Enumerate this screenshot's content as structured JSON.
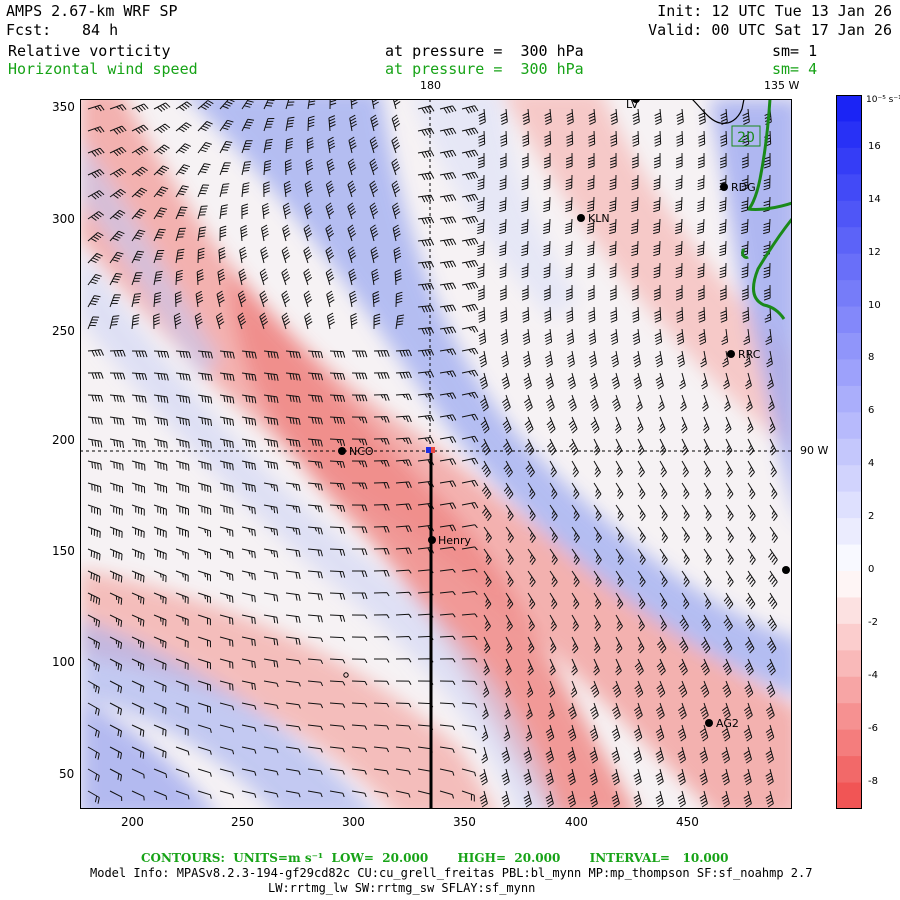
{
  "header": {
    "title": "AMPS 2.67-km WRF SP",
    "fcst_label": "Fcst:",
    "fcst_value": "84 h",
    "init": "Init: 12 UTC Tue 13 Jan 26",
    "valid": "Valid: 00 UTC Sat 17 Jan 26",
    "field1": {
      "name": "Relative vorticity",
      "level": "at pressure =  300 hPa",
      "sm": "sm= 1"
    },
    "field2": {
      "name": "Horizontal wind speed",
      "level": "at pressure =  300 hPa",
      "sm": "sm= 4"
    }
  },
  "map": {
    "x_ticks": [
      "200",
      "250",
      "300",
      "350",
      "400",
      "450"
    ],
    "y_ticks": [
      "350",
      "300",
      "250",
      "200",
      "150",
      "100",
      "50"
    ],
    "meridian_labels": {
      "lon180": "180",
      "lon135w": "135 W",
      "lon90w": "90 W"
    },
    "stations": [
      {
        "name": "LV",
        "key": "lv"
      },
      {
        "name": "RDG",
        "key": "rdg"
      },
      {
        "name": "KLN",
        "key": "kln"
      },
      {
        "name": "RRC",
        "key": "rrc"
      },
      {
        "name": "NCO",
        "key": "nco"
      },
      {
        "name": "Henry",
        "key": "henry"
      },
      {
        "name": "AG2",
        "key": "ag2"
      }
    ],
    "contour_label": "20",
    "colors": {
      "positive": "#1f2fe0",
      "negative": "#e8453f",
      "coast": "#1a8a1a"
    }
  },
  "colorbar": {
    "units": "10⁻⁵ s⁻¹",
    "ticks": [
      "16",
      "14",
      "12",
      "10",
      "8",
      "6",
      "4",
      "2",
      "0",
      "-2",
      "-4",
      "-6",
      "-8"
    ],
    "min": -9,
    "max": 18
  },
  "footer": {
    "contours": "CONTOURS:  UNITS=m s⁻¹  LOW=  20.000       HIGH=  20.000       INTERVAL=   10.000",
    "model_info": "Model Info: MPASv8.2.3-194-gf29cd82c CU:cu_grell_freitas PBL:bl_mynn MP:mp_thompson SF:sf_noahmp 2.7",
    "model_info2": "LW:rrtmg_lw SW:rrtmg_sw SFLAY:sf_mynn"
  }
}
